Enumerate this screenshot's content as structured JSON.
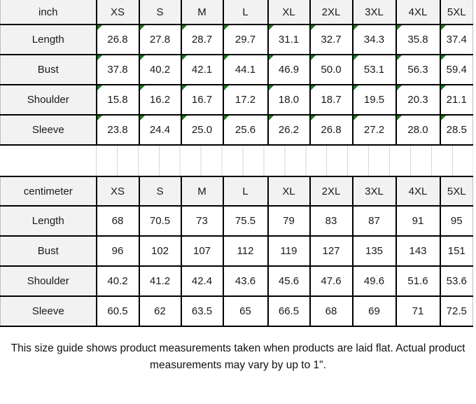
{
  "colors": {
    "header_bg": "#f2f2f2",
    "cell_bg": "#ffffff",
    "border": "#000000",
    "faint_gridline": "#d6d6d6",
    "flag_green": "#1c7c1c",
    "text": "#1a1a1a"
  },
  "icons": {
    "cell_flag": "green triangle, top-left corner of cell"
  },
  "sizes": [
    "XS",
    "S",
    "M",
    "L",
    "XL",
    "2XL",
    "3XL",
    "4XL",
    "5XL"
  ],
  "tables": [
    {
      "unit_label": "inch",
      "flags": true,
      "rows": [
        {
          "label": "Length",
          "values": [
            "26.8",
            "27.8",
            "28.7",
            "29.7",
            "31.1",
            "32.7",
            "34.3",
            "35.8",
            "37.4"
          ]
        },
        {
          "label": "Bust",
          "values": [
            "37.8",
            "40.2",
            "42.1",
            "44.1",
            "46.9",
            "50.0",
            "53.1",
            "56.3",
            "59.4"
          ]
        },
        {
          "label": "Shoulder",
          "values": [
            "15.8",
            "16.2",
            "16.7",
            "17.2",
            "18.0",
            "18.7",
            "19.5",
            "20.3",
            "21.1"
          ]
        },
        {
          "label": "Sleeve",
          "values": [
            "23.8",
            "24.4",
            "25.0",
            "25.6",
            "26.2",
            "26.8",
            "27.2",
            "28.0",
            "28.5"
          ]
        }
      ]
    },
    {
      "unit_label": "centimeter",
      "flags": false,
      "rows": [
        {
          "label": "Length",
          "values": [
            "68",
            "70.5",
            "73",
            "75.5",
            "79",
            "83",
            "87",
            "91",
            "95"
          ]
        },
        {
          "label": "Bust",
          "values": [
            "96",
            "102",
            "107",
            "112",
            "119",
            "127",
            "135",
            "143",
            "151"
          ]
        },
        {
          "label": "Shoulder",
          "values": [
            "40.2",
            "41.2",
            "42.4",
            "43.6",
            "45.6",
            "47.6",
            "49.6",
            "51.6",
            "53.6"
          ]
        },
        {
          "label": "Sleeve",
          "values": [
            "60.5",
            "62",
            "63.5",
            "65",
            "66.5",
            "68",
            "69",
            "71",
            "72.5"
          ]
        }
      ]
    }
  ],
  "footer": {
    "note": "This size guide shows product measurements taken when products are laid flat. Actual product measurements may vary by up to 1\".",
    "lines": [
      "This size guide shows product measurements taken when products are laid flat. Actual product",
      "measurements may vary by up to 1\"."
    ]
  }
}
